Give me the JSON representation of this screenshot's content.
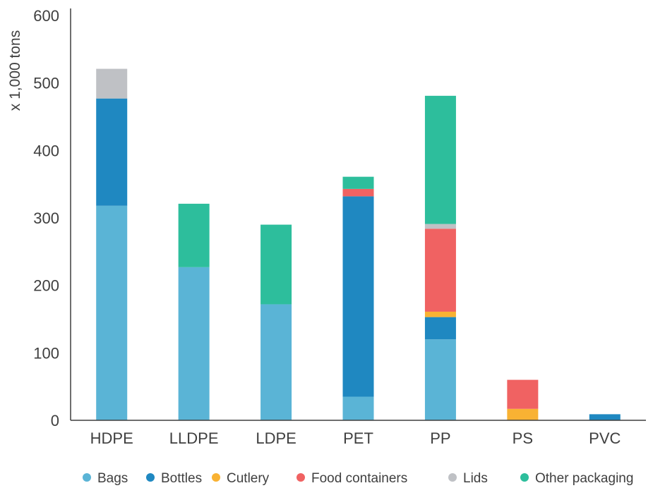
{
  "chart_data": {
    "type": "bar",
    "stacked": true,
    "title": "",
    "xlabel": "",
    "ylabel": "x 1,000 tons",
    "ylim": [
      0,
      600
    ],
    "yticks": [
      0,
      100,
      200,
      300,
      400,
      500,
      600
    ],
    "grid": false,
    "legend_position": "bottom",
    "categories": [
      "HDPE",
      "LLDPE",
      "LDPE",
      "PET",
      "PP",
      "PS",
      "PVC"
    ],
    "series": [
      {
        "name": "Bags",
        "color": "#5ab4d6",
        "values": [
          318,
          227,
          172,
          35,
          120,
          0,
          0
        ]
      },
      {
        "name": "Bottles",
        "color": "#1f88c1",
        "values": [
          159,
          0,
          0,
          297,
          33,
          0,
          9
        ]
      },
      {
        "name": "Cutlery",
        "color": "#f9b233",
        "values": [
          0,
          0,
          0,
          0,
          8,
          17,
          0
        ]
      },
      {
        "name": "Food containers",
        "color": "#f06262",
        "values": [
          0,
          0,
          0,
          11,
          123,
          43,
          0
        ]
      },
      {
        "name": "Lids",
        "color": "#bfc1c5",
        "values": [
          44,
          0,
          0,
          0,
          7,
          0,
          0
        ]
      },
      {
        "name": "Other packaging",
        "color": "#2dbe9c",
        "values": [
          0,
          94,
          118,
          18,
          190,
          0,
          0
        ]
      }
    ]
  }
}
